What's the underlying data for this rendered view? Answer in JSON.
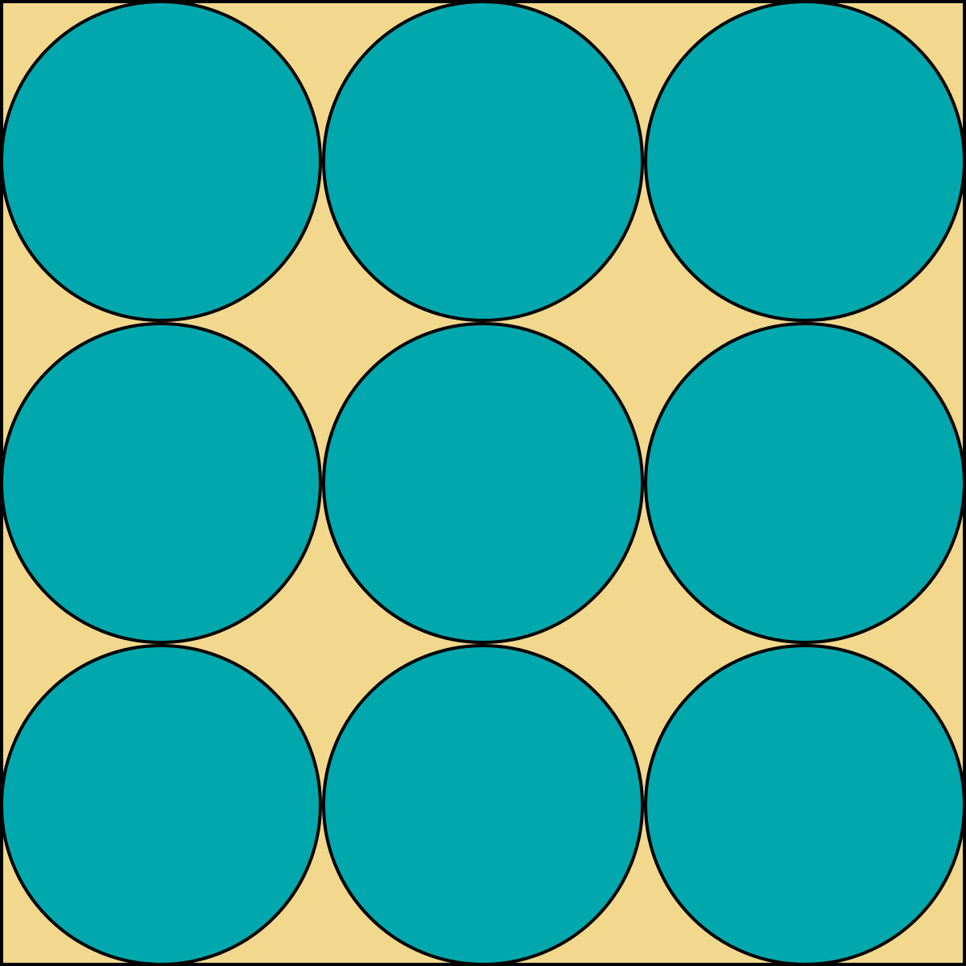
{
  "colors": {
    "background": "#F2D88C",
    "circle_fill": "#00A8AD",
    "stroke": "#000000"
  },
  "grid": {
    "rows": 3,
    "columns": 3,
    "shape": "circle",
    "count": 9
  }
}
